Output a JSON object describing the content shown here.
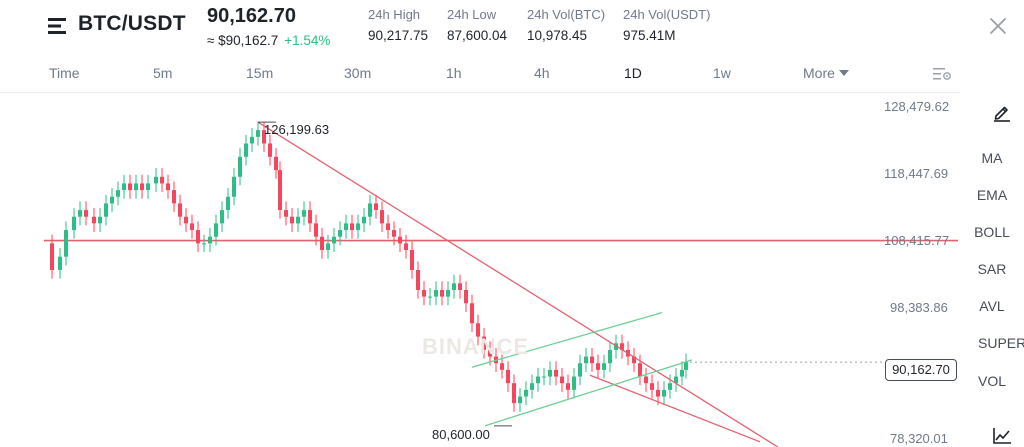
{
  "header": {
    "pair": "BTC/USDT",
    "price": "90,162.70",
    "fiat_price": "≈ $90,162.7",
    "change": "+1.54%",
    "stats": [
      {
        "label": "24h High",
        "value": "90,217.75"
      },
      {
        "label": "24h Low",
        "value": "87,600.04"
      },
      {
        "label": "24h Vol(BTC)",
        "value": "10,978.45"
      },
      {
        "label": "24h Vol(USDT)",
        "value": "975.41M"
      }
    ]
  },
  "intervals": {
    "items": [
      "Time",
      "5m",
      "15m",
      "30m",
      "1h",
      "4h",
      "1D",
      "1w"
    ],
    "active": "1D",
    "more": "More"
  },
  "toolbar": {
    "items": [
      "MA",
      "EMA",
      "BOLL",
      "SAR",
      "AVL",
      "SUPER",
      "VOL"
    ]
  },
  "chart_data": {
    "type": "candlestick",
    "y_axis_ticks": [
      "128,479.62",
      "118,447.69",
      "108,415.77",
      "98,383.86",
      "78,320.01"
    ],
    "current_price_label": "90,162.70",
    "current_price": 90162.7,
    "annotations": {
      "high": "126,199.63",
      "low": "80,600.00"
    },
    "horizontal_line": 108415.77,
    "watermark": "BINANCE",
    "colors": {
      "up": "#2ebd85",
      "down": "#f6465d",
      "trendline": "#e0626e",
      "channel": "#6ccf94"
    },
    "ylim": [
      78320.01,
      128479.62
    ]
  }
}
